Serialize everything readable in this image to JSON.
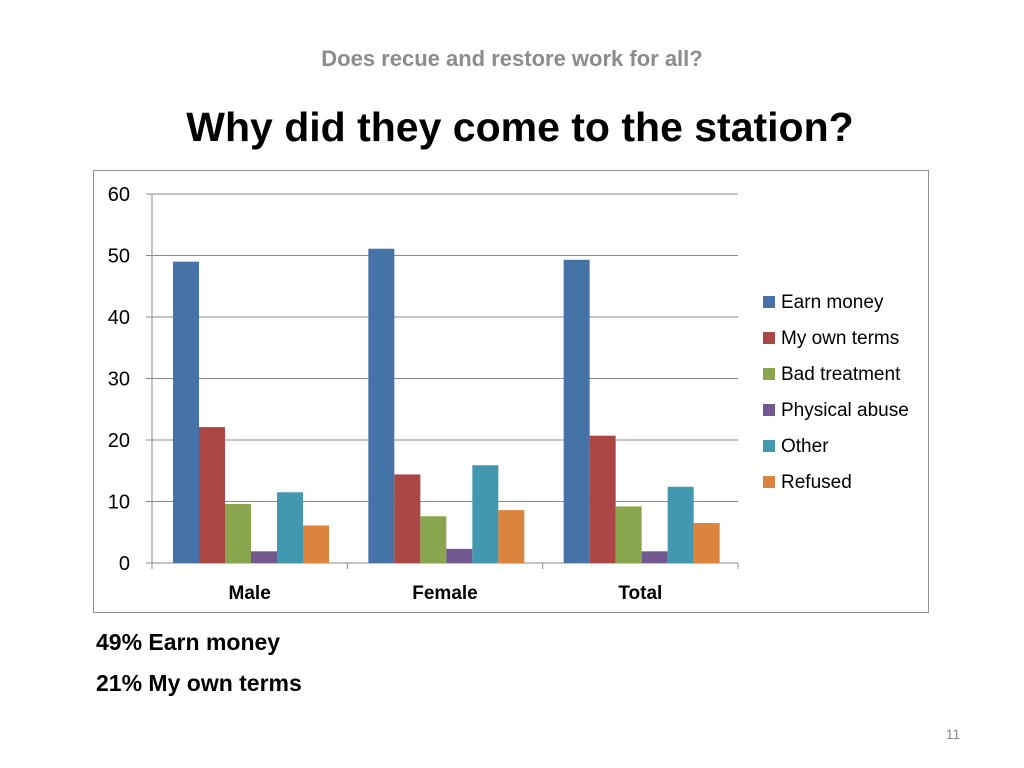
{
  "slide": {
    "subtitle": "Does recue and restore work for all?",
    "title": "Why did they come to the station?",
    "notes": [
      "49% Earn money",
      "21% My own terms"
    ],
    "page_number": "11"
  },
  "chart_data": {
    "type": "bar",
    "categories": [
      "Male",
      "Female",
      "Total"
    ],
    "series": [
      {
        "name": "Earn money",
        "color": "#4572a7",
        "values": [
          49,
          51.1,
          49.3
        ]
      },
      {
        "name": "My own terms",
        "color": "#aa4643",
        "values": [
          22.1,
          14.4,
          20.7
        ]
      },
      {
        "name": "Bad treatment",
        "color": "#89a54e",
        "values": [
          9.6,
          7.6,
          9.2
        ]
      },
      {
        "name": "Physical abuse",
        "color": "#71588f",
        "values": [
          1.9,
          2.3,
          1.9
        ]
      },
      {
        "name": "Other",
        "color": "#4198af",
        "values": [
          11.5,
          15.9,
          12.4
        ]
      },
      {
        "name": "Refused",
        "color": "#db843d",
        "values": [
          6.1,
          8.6,
          6.5
        ]
      }
    ],
    "ylim": [
      0,
      60
    ],
    "yticks": [
      0,
      10,
      20,
      30,
      40,
      50,
      60
    ],
    "grid": true,
    "legend_position": "right"
  }
}
